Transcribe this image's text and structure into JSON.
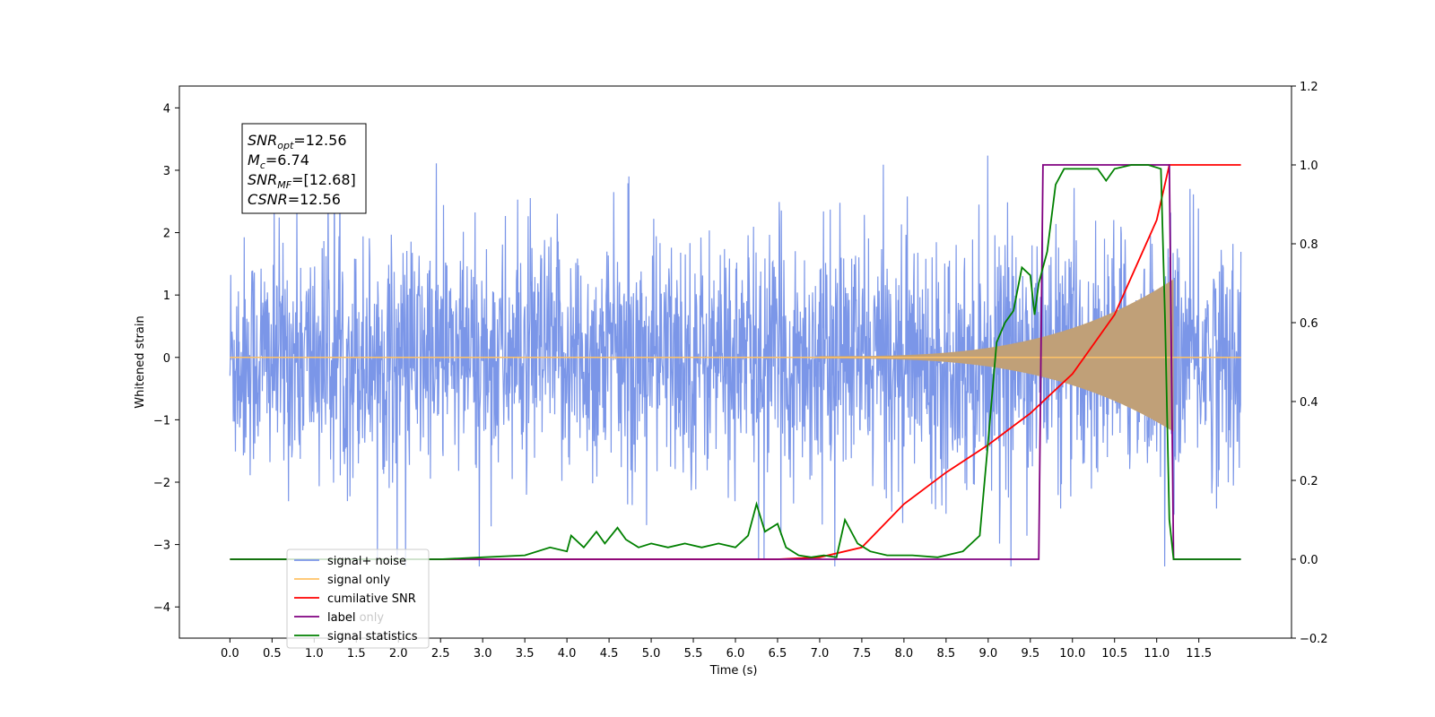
{
  "chart_data": {
    "type": "line",
    "title": "",
    "xlabel": "Time (s)",
    "ylabel": "Whitened strain",
    "xlim": [
      -0.6,
      12.6
    ],
    "ylim": [
      -4.5,
      4.35
    ],
    "y2lim": [
      -0.2,
      1.2
    ],
    "grid": false,
    "legend_position": "lower-left",
    "x_ticks": [
      "0.0",
      "0.5",
      "1.0",
      "1.5",
      "2.0",
      "2.5",
      "3.0",
      "3.5",
      "4.0",
      "4.5",
      "5.0",
      "5.5",
      "6.0",
      "6.5",
      "7.0",
      "7.5",
      "8.0",
      "8.5",
      "9.0",
      "9.5",
      "10.0",
      "10.5",
      "11.0",
      "11.5"
    ],
    "y_ticks": [
      "4",
      "3",
      "2",
      "1",
      "0",
      "−1",
      "−2",
      "−3",
      "−4"
    ],
    "y2_ticks": [
      "1.2",
      "1.0",
      "0.8",
      "0.6",
      "0.4",
      "0.2",
      "0.0",
      "−0.2"
    ],
    "info_box": [
      {
        "base": "SNR",
        "sub": "opt",
        "value": "=12.56"
      },
      {
        "base": "M",
        "sub": "c",
        "value": "=6.74"
      },
      {
        "base": "SNR",
        "sub": "MF",
        "value": "=[12.68]"
      },
      {
        "base": "CSNR",
        "sub": "",
        "value": "=12.56"
      }
    ],
    "series": [
      {
        "name": "signal+ noise",
        "color": "#7b96e8",
        "axis": "left",
        "note_range": [
          -3.35,
          3.95
        ],
        "x_range": [
          0.0,
          12.0
        ]
      },
      {
        "name": "signal only",
        "color": "#ffc266",
        "axis": "left",
        "chirp_start": 7.0,
        "chirp_end": 11.2,
        "max_amplitude": 1.3
      },
      {
        "name": "cumilative SNR",
        "color": "#ff0000",
        "axis": "right",
        "x": [
          0.0,
          6.5,
          7.0,
          7.5,
          8.0,
          8.5,
          9.0,
          9.5,
          10.0,
          10.5,
          11.0,
          11.15,
          11.2,
          12.0
        ],
        "values": [
          0.0,
          0.0,
          0.005,
          0.03,
          0.14,
          0.22,
          0.29,
          0.37,
          0.47,
          0.62,
          0.86,
          1.0,
          1.0,
          1.0
        ]
      },
      {
        "name": "label",
        "color": "#800080",
        "axis": "right",
        "x": [
          0.0,
          9.6,
          9.65,
          11.15,
          11.2,
          12.0
        ],
        "values": [
          0.0,
          0.0,
          1.0,
          1.0,
          0.0,
          0.0
        ]
      },
      {
        "name": "label only",
        "color": "#c8c8c8",
        "axis": "right",
        "x": [],
        "values": []
      },
      {
        "name": "signal statistics",
        "color": "#008000",
        "axis": "right",
        "x": [
          0.0,
          2.5,
          3.0,
          3.5,
          3.8,
          4.0,
          4.05,
          4.2,
          4.35,
          4.45,
          4.6,
          4.7,
          4.85,
          5.0,
          5.2,
          5.4,
          5.6,
          5.8,
          6.0,
          6.15,
          6.25,
          6.35,
          6.5,
          6.6,
          6.75,
          6.9,
          7.05,
          7.2,
          7.3,
          7.45,
          7.6,
          7.8,
          8.1,
          8.4,
          8.7,
          8.9,
          9.0,
          9.1,
          9.2,
          9.3,
          9.4,
          9.5,
          9.55,
          9.6,
          9.7,
          9.8,
          9.9,
          10.1,
          10.3,
          10.4,
          10.5,
          10.7,
          10.9,
          11.05,
          11.1,
          11.15,
          11.2,
          11.3,
          12.0
        ],
        "values": [
          0.0,
          0.0,
          0.005,
          0.01,
          0.03,
          0.02,
          0.06,
          0.03,
          0.07,
          0.04,
          0.08,
          0.05,
          0.03,
          0.04,
          0.03,
          0.04,
          0.03,
          0.04,
          0.03,
          0.06,
          0.14,
          0.07,
          0.09,
          0.03,
          0.01,
          0.005,
          0.01,
          0.005,
          0.1,
          0.04,
          0.02,
          0.01,
          0.01,
          0.005,
          0.02,
          0.06,
          0.3,
          0.55,
          0.6,
          0.63,
          0.74,
          0.72,
          0.62,
          0.7,
          0.78,
          0.95,
          0.99,
          0.99,
          0.99,
          0.96,
          0.99,
          1.0,
          1.0,
          0.99,
          0.6,
          0.1,
          0.0,
          0.0,
          0.0
        ]
      }
    ]
  }
}
